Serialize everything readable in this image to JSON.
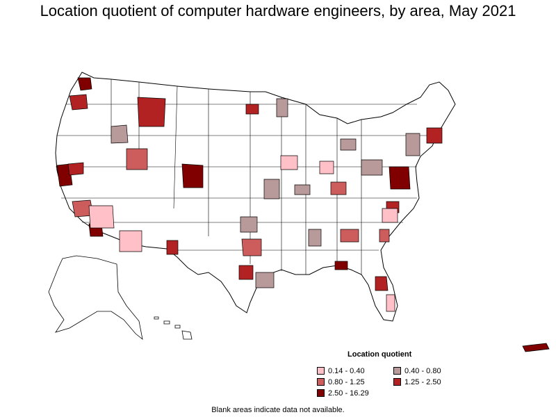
{
  "title": "Location quotient of computer hardware engineers, by area, May 2021",
  "legend": {
    "title": "Location quotient",
    "items": [
      {
        "label": "0.14 - 0.40",
        "color": "#ffc0c8"
      },
      {
        "label": "0.40 - 0.80",
        "color": "#b99a9a"
      },
      {
        "label": "0.80 - 1.25",
        "color": "#cd5c5c"
      },
      {
        "label": "1.25 - 2.50",
        "color": "#b22222"
      },
      {
        "label": "2.50 - 16.29",
        "color": "#800000"
      }
    ]
  },
  "footnote": "Blank areas indicate data not available.",
  "colors": {
    "outline": "#000000",
    "no_data": "#ffffff"
  }
}
